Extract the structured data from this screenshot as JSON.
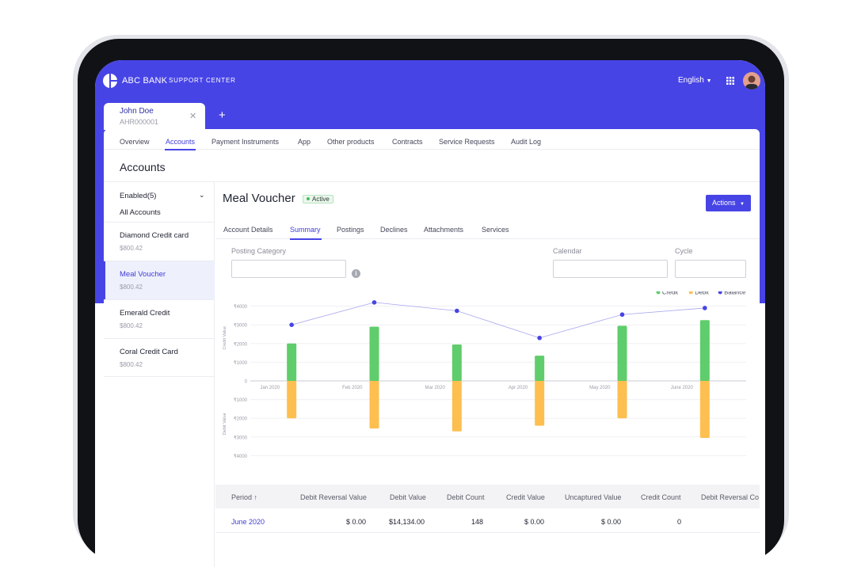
{
  "app": {
    "brand": "ABC BANK",
    "brand_sub": "SUPPORT CENTER",
    "language": "English",
    "grid_icon": "apps-grid-icon",
    "avatar_icon": "user-avatar",
    "accent_color": "#4744e6"
  },
  "customer_tab": {
    "name": "John Doe",
    "id": "AHR000001",
    "close_icon": "close-icon",
    "add_label": "+"
  },
  "nav": {
    "items": [
      "Overview",
      "Accounts",
      "Payment Instruments",
      "App",
      "Other products",
      "Contracts",
      "Service Requests",
      "Audit Log"
    ],
    "active": "Accounts"
  },
  "page": {
    "title": "Accounts"
  },
  "sidebar": {
    "filter_label": "Enabled(5)",
    "filter_value": "All Accounts",
    "accounts": [
      {
        "name": "Diamond Credit card",
        "amount": "$800.42"
      },
      {
        "name": "Meal Voucher",
        "amount": "$800.42"
      },
      {
        "name": "Emerald Credit",
        "amount": "$800.42"
      },
      {
        "name": "Coral Credit Card",
        "amount": "$800.42"
      }
    ],
    "selected": "Meal Voucher"
  },
  "account": {
    "title": "Meal Voucher",
    "status": "Active",
    "status_color": "#4cbb63",
    "actions_label": "Actions"
  },
  "sub_nav": {
    "items": [
      "Account Details",
      "Summary",
      "Postings",
      "Declines",
      "Attachments",
      "Services"
    ],
    "active": "Summary"
  },
  "filters": {
    "posting_category_label": "Posting Category",
    "posting_category_value": "",
    "calendar_label": "Calendar",
    "calendar_value": "",
    "cycle_label": "Cycle",
    "cycle_value": ""
  },
  "chart_data": {
    "type": "bar",
    "categories": [
      "Jan 2020",
      "Feb 2020",
      "Mar 2020",
      "Apr 2020",
      "May 2020",
      "June 2020"
    ],
    "series": [
      {
        "name": "Credit",
        "type": "bar",
        "values": [
          2000,
          2900,
          1950,
          1350,
          2950,
          3250
        ],
        "color": "#5fcd6b"
      },
      {
        "name": "Debit",
        "type": "bar",
        "values": [
          -2000,
          -2550,
          -2700,
          -2400,
          -2000,
          -3050
        ],
        "color": "#fdbf50"
      },
      {
        "name": "Balance",
        "type": "line",
        "values": [
          3000,
          4200,
          3750,
          2300,
          3550,
          3900
        ],
        "color": "#4744e6"
      }
    ],
    "ylabel_positive": "Credit Value",
    "ylabel_negative": "Debit Value",
    "y_ticks": [
      "₹4000",
      "₹3000",
      "₹2000",
      "₹1000",
      "0",
      "₹1000",
      "₹2000",
      "₹3000",
      "₹4000"
    ],
    "ylim": [
      -4000,
      4000
    ],
    "legend_position": "top-right",
    "grid": true
  },
  "table": {
    "columns": [
      "Period",
      "Debit Reversal Value",
      "Debit Value",
      "Debit Count",
      "Credit Value",
      "Uncaptured Value",
      "Credit Count",
      "Debit Reversal Co"
    ],
    "sort_icon": "arrow-up-icon",
    "rows": [
      [
        "June 2020",
        "$ 0.00",
        "$14,134.00",
        "148",
        "$ 0.00",
        "$ 0.00",
        "0",
        ""
      ]
    ]
  }
}
